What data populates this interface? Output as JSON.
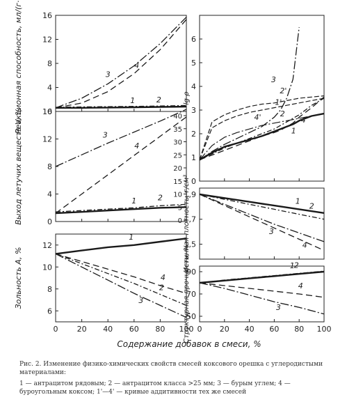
{
  "figure": {
    "shared_xlabel": "Содержание добавок в смеси, %",
    "x_ticks": [
      "0",
      "20",
      "40",
      "60",
      "80",
      "100"
    ],
    "caption_title": "Рис. 2. Изменение физико-химических свойств смесей коксового орешка с углеродистыми материалами:",
    "caption_legend": "1 — антрацитом рядовым; 2 — антрацитом класса >25 мм; 3 — бурым углем; 4 — буроугольным коксом; 1'—4' — кривые аддитивности тех же смесей"
  },
  "chart_data": [
    {
      "type": "line",
      "ylabel": "Реакционная способность, мл/(г·с)",
      "ylim": [
        0,
        16
      ],
      "y_ticks": [
        "0",
        "4",
        "8",
        "12",
        "16"
      ],
      "x": [
        0,
        20,
        40,
        60,
        80,
        100
      ],
      "series": [
        {
          "name": "1",
          "values": [
            0.6,
            0.6,
            0.65,
            0.7,
            0.75,
            0.8
          ]
        },
        {
          "name": "2",
          "values": [
            0.7,
            0.75,
            0.8,
            0.85,
            0.9,
            1.0
          ]
        },
        {
          "name": "3",
          "values": [
            0.6,
            2.2,
            4.6,
            7.6,
            11.3,
            15.7
          ]
        },
        {
          "name": "4",
          "values": [
            0.6,
            1.4,
            3.3,
            6.3,
            10.3,
            15.3
          ]
        }
      ]
    },
    {
      "type": "line",
      "ylabel": "Выход летучих веществ V, %",
      "ylim": [
        0,
        16
      ],
      "y_ticks": [
        "0",
        "4",
        "8",
        "12",
        "16"
      ],
      "y2_ticks": [
        "0",
        "5",
        "10",
        "15",
        "20",
        "25",
        "30",
        "35",
        "40"
      ],
      "x": [
        0,
        20,
        40,
        60,
        80,
        100
      ],
      "series": [
        {
          "name": "1",
          "values": [
            1.2,
            1.4,
            1.6,
            1.8,
            2.0,
            2.1
          ]
        },
        {
          "name": "2",
          "values": [
            1.4,
            1.6,
            1.8,
            2.0,
            2.3,
            2.5
          ]
        },
        {
          "name": "3",
          "values": [
            8.0,
            9.7,
            11.4,
            13.0,
            14.6,
            16.3
          ]
        },
        {
          "name": "4",
          "values": [
            1.2,
            4.0,
            6.8,
            9.6,
            12.4,
            15.2
          ]
        }
      ]
    },
    {
      "type": "line",
      "ylabel": "Зольность A, %",
      "ylim": [
        5,
        13
      ],
      "y_ticks": [
        "6",
        "8",
        "10",
        "12"
      ],
      "x": [
        0,
        20,
        40,
        60,
        80,
        100
      ],
      "series": [
        {
          "name": "1",
          "values": [
            11.2,
            11.5,
            11.8,
            12.0,
            12.3,
            12.6
          ]
        },
        {
          "name": "2",
          "values": [
            11.2,
            10.3,
            9.4,
            8.5,
            7.5,
            6.5
          ]
        },
        {
          "name": "3",
          "values": [
            11.2,
            10.0,
            8.8,
            7.6,
            6.5,
            5.4
          ]
        },
        {
          "name": "4",
          "values": [
            11.2,
            10.5,
            9.8,
            9.1,
            8.3,
            7.6
          ]
        }
      ]
    },
    {
      "type": "line",
      "ylabel": "lg ρ",
      "ylim": [
        0,
        7
      ],
      "y_ticks": [
        "0",
        "1",
        "2",
        "3",
        "4",
        "5",
        "6"
      ],
      "x": [
        0,
        10,
        20,
        30,
        40,
        50,
        60,
        65,
        70,
        75,
        80,
        90,
        100
      ],
      "series": [
        {
          "name": "1",
          "values": [
            0.9,
            1.2,
            1.45,
            1.6,
            1.75,
            1.9,
            2.1,
            2.2,
            2.3,
            2.4,
            2.55,
            2.75,
            2.85
          ]
        },
        {
          "name": "2",
          "values": [
            0.9,
            1.15,
            1.4,
            1.6,
            1.8,
            2.0,
            2.2,
            2.35,
            2.5,
            2.65,
            2.8,
            3.2,
            3.5
          ]
        },
        {
          "name": "3",
          "values": [
            0.9,
            1.25,
            1.55,
            1.8,
            2.05,
            2.3,
            2.7,
            3.0,
            3.5,
            4.3,
            6.5,
            null,
            null
          ]
        },
        {
          "name": "4",
          "values": [
            0.9,
            1.1,
            1.3,
            1.5,
            1.7,
            1.9,
            2.05,
            2.15,
            2.3,
            2.45,
            2.7,
            3.1,
            3.55
          ]
        },
        {
          "name": "1'",
          "values": [
            0.9,
            2.25,
            2.55,
            2.75,
            2.9,
            3.0,
            3.1,
            3.15,
            3.2,
            3.25,
            3.3,
            3.4,
            3.5
          ]
        },
        {
          "name": "2'",
          "values": [
            0.9,
            2.5,
            2.8,
            3.0,
            3.15,
            3.25,
            3.3,
            3.35,
            3.4,
            3.45,
            3.5,
            3.55,
            3.6
          ]
        },
        {
          "name": "4'",
          "values": [
            0.9,
            1.5,
            1.85,
            2.05,
            2.2,
            2.35,
            2.45,
            2.5,
            2.55,
            2.6,
            2.65,
            2.75,
            2.85
          ]
        }
      ]
    },
    {
      "type": "line",
      "ylabel": "Истинная плотность, г/см³",
      "ylim": [
        1.38,
        1.95
      ],
      "y_ticks": [
        "1,5",
        "1,7",
        "1,9"
      ],
      "x": [
        0,
        20,
        40,
        60,
        80,
        100
      ],
      "series": [
        {
          "name": "1",
          "values": [
            1.9,
            1.87,
            1.84,
            1.81,
            1.78,
            1.75
          ]
        },
        {
          "name": "2",
          "values": [
            1.9,
            1.86,
            1.82,
            1.78,
            1.74,
            1.7
          ]
        },
        {
          "name": "3",
          "values": [
            1.9,
            1.82,
            1.74,
            1.66,
            1.59,
            1.52
          ]
        },
        {
          "name": "4",
          "values": [
            1.9,
            1.81,
            1.72,
            1.63,
            1.54,
            1.45
          ]
        }
      ]
    },
    {
      "type": "line",
      "ylabel": "Структурная прочность, %",
      "ylim": [
        45,
        95
      ],
      "y_ticks": [
        "50",
        "70",
        "90"
      ],
      "x": [
        0,
        20,
        40,
        60,
        80,
        100
      ],
      "series": [
        {
          "name": "1",
          "values": [
            80,
            82,
            84,
            86,
            88,
            90
          ]
        },
        {
          "name": "2",
          "values": [
            80,
            82.5,
            84.5,
            86.5,
            88.5,
            90.5
          ]
        },
        {
          "name": "3",
          "values": [
            80,
            75,
            69,
            63,
            58,
            52
          ]
        },
        {
          "name": "4",
          "values": [
            80,
            77.5,
            75,
            72.5,
            70,
            67
          ]
        }
      ]
    }
  ]
}
